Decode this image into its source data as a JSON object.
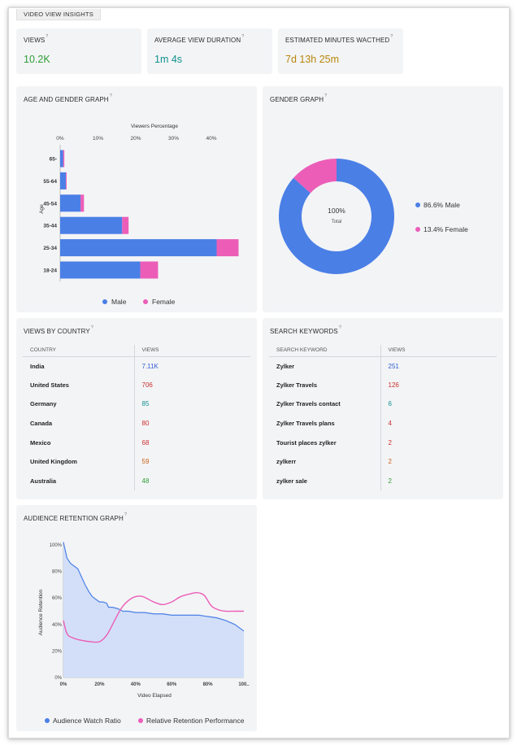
{
  "page_tag": "VIDEO VIEW INSIGHTS",
  "colors": {
    "male": "#4a7fe6",
    "female": "#ec5db8",
    "green": "#2e9e37",
    "teal": "#10908e",
    "gold": "#b8860b",
    "blue_text": "#2f5fd6",
    "red_text": "#cc2f2f",
    "orange_text": "#c9601a"
  },
  "metrics": [
    {
      "title": "VIEWS",
      "q": "?",
      "value": "10.2K",
      "color": "#2e9e37"
    },
    {
      "title": "AVERAGE VIEW DURATION",
      "q": "?",
      "value": "1m 4s",
      "color": "#10908e"
    },
    {
      "title": "ESTIMATED MINUTES WACTHED",
      "q": "?",
      "value": "7d 13h 25m",
      "color": "#b8860b"
    }
  ],
  "age_gender": {
    "title": "AGE AND GENDER GRAPH",
    "q": "?",
    "chart_data": {
      "type": "bar",
      "orientation": "horizontal-stacked",
      "xlabel": "Viewers Percentage",
      "ylabel": "Age",
      "x_ticks": [
        "0%",
        "10%",
        "20%",
        "30%",
        "40%"
      ],
      "xlim": [
        0,
        47
      ],
      "categories": [
        "65-",
        "55-64",
        "45-54",
        "35-44",
        "25-34",
        "18-24"
      ],
      "series": [
        {
          "name": "Male",
          "values": [
            0.8,
            1.5,
            5.4,
            16.4,
            41.4,
            21.2
          ]
        },
        {
          "name": "Female",
          "values": [
            0.3,
            0.2,
            0.9,
            1.7,
            5.8,
            4.7
          ]
        }
      ],
      "legend": [
        "Male",
        "Female"
      ]
    }
  },
  "gender": {
    "title": "GENDER GRAPH",
    "q": "?",
    "chart_data": {
      "type": "pie",
      "style": "donut",
      "center_value": "100%",
      "center_label": "Total",
      "slices": [
        {
          "name": "Male",
          "value": 86.6,
          "label": "86.6% Male"
        },
        {
          "name": "Female",
          "value": 13.4,
          "label": "13.4% Female"
        }
      ]
    }
  },
  "countries": {
    "title": "VIEWS BY COUNTRY",
    "q": "?",
    "headers": [
      "COUNTRY",
      "VIEWS"
    ],
    "rows": [
      {
        "name": "India",
        "views": "7.11K",
        "color": "#2f5fd6"
      },
      {
        "name": "United States",
        "views": "706",
        "color": "#cc2f2f"
      },
      {
        "name": "Germany",
        "views": "85",
        "color": "#10908e"
      },
      {
        "name": "Canada",
        "views": "80",
        "color": "#cc2f2f"
      },
      {
        "name": "Mexico",
        "views": "68",
        "color": "#cc2f2f"
      },
      {
        "name": "United Kingdom",
        "views": "59",
        "color": "#c9601a"
      },
      {
        "name": "Australia",
        "views": "48",
        "color": "#2e9e37"
      }
    ]
  },
  "keywords": {
    "title": "SEARCH KEYWORDS",
    "q": "?",
    "headers": [
      "SEARCH KEYWORD",
      "VIEWS"
    ],
    "rows": [
      {
        "name": "Zylker",
        "views": "251",
        "color": "#2f5fd6"
      },
      {
        "name": "Zylker Travels",
        "views": "126",
        "color": "#cc2f2f"
      },
      {
        "name": "Zylker Travels contact",
        "views": "6",
        "color": "#10908e"
      },
      {
        "name": "Zylker Travels plans",
        "views": "4",
        "color": "#cc2f2f"
      },
      {
        "name": "Tourist places zylker",
        "views": "2",
        "color": "#cc2f2f"
      },
      {
        "name": "zylkerr",
        "views": "2",
        "color": "#c9601a"
      },
      {
        "name": "zylker sale",
        "views": "2",
        "color": "#2e9e37"
      }
    ]
  },
  "retention": {
    "title": "AUDIENCE RETENTION GRAPH",
    "q": "?",
    "chart_data": {
      "type": "area",
      "xlabel": "Video Elapsed",
      "ylabel": "Audience Retention",
      "x_ticks": [
        "0%",
        "20%",
        "40%",
        "60%",
        "80%",
        "100.."
      ],
      "y_ticks": [
        "0%",
        "20%",
        "40%",
        "60%",
        "80%",
        "100%"
      ],
      "xlim": [
        0,
        100
      ],
      "ylim": [
        0,
        100
      ],
      "series": [
        {
          "name": "Audience Watch Ratio",
          "x": [
            0,
            1,
            2,
            4,
            6,
            8,
            10,
            12,
            14,
            16,
            18,
            20,
            22,
            24,
            25,
            27,
            30,
            33,
            36,
            40,
            45,
            50,
            55,
            60,
            65,
            70,
            75,
            80,
            85,
            90,
            95,
            100
          ],
          "y": [
            102,
            96,
            90,
            86,
            84,
            82,
            76,
            70,
            65,
            61,
            59,
            57,
            57,
            56,
            53,
            53,
            52,
            50,
            50,
            49,
            49,
            48,
            48,
            47,
            47,
            47,
            47,
            46,
            45,
            43,
            40,
            35
          ]
        },
        {
          "name": "Relative Retention Performance",
          "x": [
            0,
            2,
            5,
            10,
            15,
            20,
            24,
            28,
            32,
            36,
            40,
            44,
            50,
            55,
            60,
            65,
            70,
            74,
            78,
            82,
            86,
            90,
            95,
            100
          ],
          "y": [
            43,
            33,
            30,
            28,
            27,
            27,
            32,
            42,
            52,
            58,
            61,
            61,
            57,
            55,
            57,
            61,
            63,
            64,
            62,
            54,
            51,
            50,
            50,
            50
          ]
        }
      ],
      "legend": [
        "Audience Watch Ratio",
        "Relative Retention Performance"
      ]
    }
  }
}
